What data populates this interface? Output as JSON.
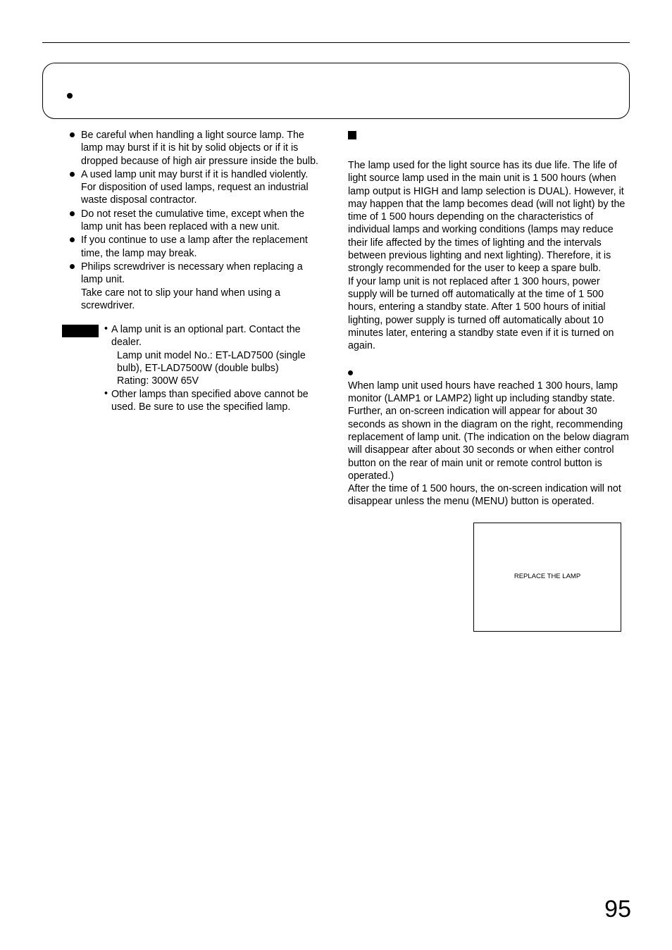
{
  "left": {
    "bullets": [
      {
        "text": "Be careful when handling a light source lamp. The lamp may burst if it is hit by solid objects or if it is dropped because of high air pressure inside the bulb."
      },
      {
        "text": "A used lamp unit may burst if it is handled violently.",
        "sub": "For disposition of used lamps, request an industrial waste disposal contractor."
      },
      {
        "text": "Do not reset the cumulative time, except when the lamp unit has been replaced with a new unit."
      },
      {
        "text": "If you continue to use a lamp after the replacement time, the lamp may break."
      },
      {
        "text": "Philips screwdriver is necessary when replacing a lamp unit.",
        "sub": "Take care not to slip your hand when using a screwdriver."
      }
    ],
    "note": {
      "items": [
        {
          "text": "A lamp unit is an optional part.  Contact the dealer.",
          "subs": [
            "Lamp unit model No.: ET-LAD7500 (single bulb), ET-LAD7500W (double bulbs)",
            "Rating: 300W 65V"
          ]
        },
        {
          "text": "Other lamps than specified above cannot be used.  Be sure to use the specified lamp."
        }
      ]
    }
  },
  "right": {
    "para1": "The lamp used for the light source has its due life.  The life of light source lamp used in the main unit is 1 500 hours  (when lamp output is HIGH and lamp selection is DUAL). However, it may happen that the lamp becomes dead (will not light) by the time of 1 500 hours depending on the characteristics of individual lamps and working conditions (lamps may reduce their life affected by the times of lighting and the intervals between previous lighting and next lighting). Therefore, it is strongly recommended for the user to keep a spare bulb.",
    "para1b": "If your lamp unit is not replaced after 1 300 hours, power supply will be turned off automatically at the time of 1 500 hours, entering a standby state. After 1 500 hours of initial lighting, power supply is turned off automatically about 10 minutes later, entering a standby state even if it is turned on again.",
    "para2a": "When lamp unit used hours have reached 1 300 hours, lamp monitor (LAMP1 or LAMP2) light up including standby state.",
    "para2b": "Further, an on-screen indication will appear for about 30 seconds as shown in the diagram on the right, recommending replacement of lamp unit. (The indication on the below diagram will disappear after about 30 seconds or when either control button on the rear of main unit or remote control button is operated.)",
    "para2c": "After the time of 1 500 hours, the on-screen indication will not disappear unless the menu (MENU) button is operated.",
    "osd": "REPLACE THE LAMP"
  },
  "pageNumber": "95"
}
